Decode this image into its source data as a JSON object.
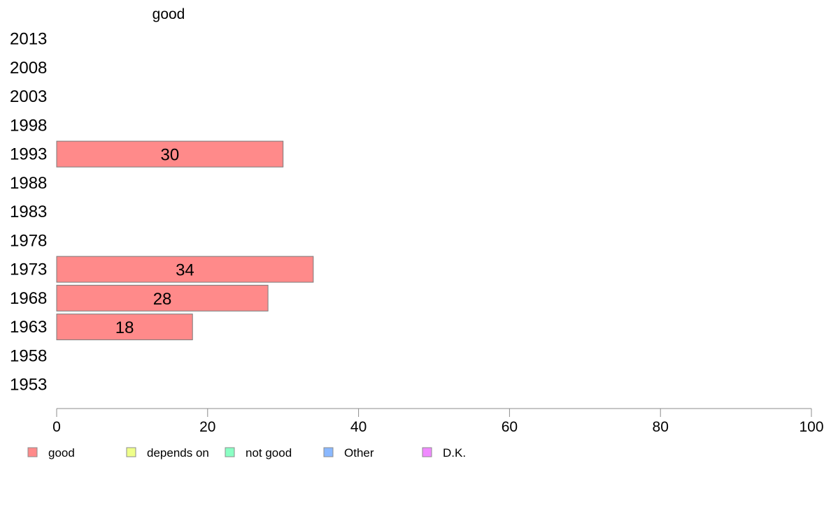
{
  "chart_data": {
    "type": "bar",
    "orientation": "horizontal",
    "title": "good",
    "categories": [
      "2013",
      "2008",
      "2003",
      "1998",
      "1993",
      "1988",
      "1983",
      "1978",
      "1973",
      "1968",
      "1963",
      "1958",
      "1953"
    ],
    "series": [
      {
        "name": "good",
        "color": "#FF8A8A",
        "values": [
          null,
          null,
          null,
          null,
          30,
          null,
          null,
          null,
          34,
          28,
          18,
          null,
          null
        ]
      }
    ],
    "xlim": [
      0,
      100
    ],
    "xticks": [
      0,
      20,
      40,
      60,
      80,
      100
    ],
    "grid": false,
    "legend": {
      "placement": "bottom",
      "entries": [
        {
          "label": "good",
          "color": "#FF8A8A"
        },
        {
          "label": "depends on",
          "color": "#EFFF8A"
        },
        {
          "label": "not good",
          "color": "#8AFFC4"
        },
        {
          "label": "Other",
          "color": "#8AB8FF"
        },
        {
          "label": "D.K.",
          "color": "#F08AFF"
        }
      ]
    }
  }
}
